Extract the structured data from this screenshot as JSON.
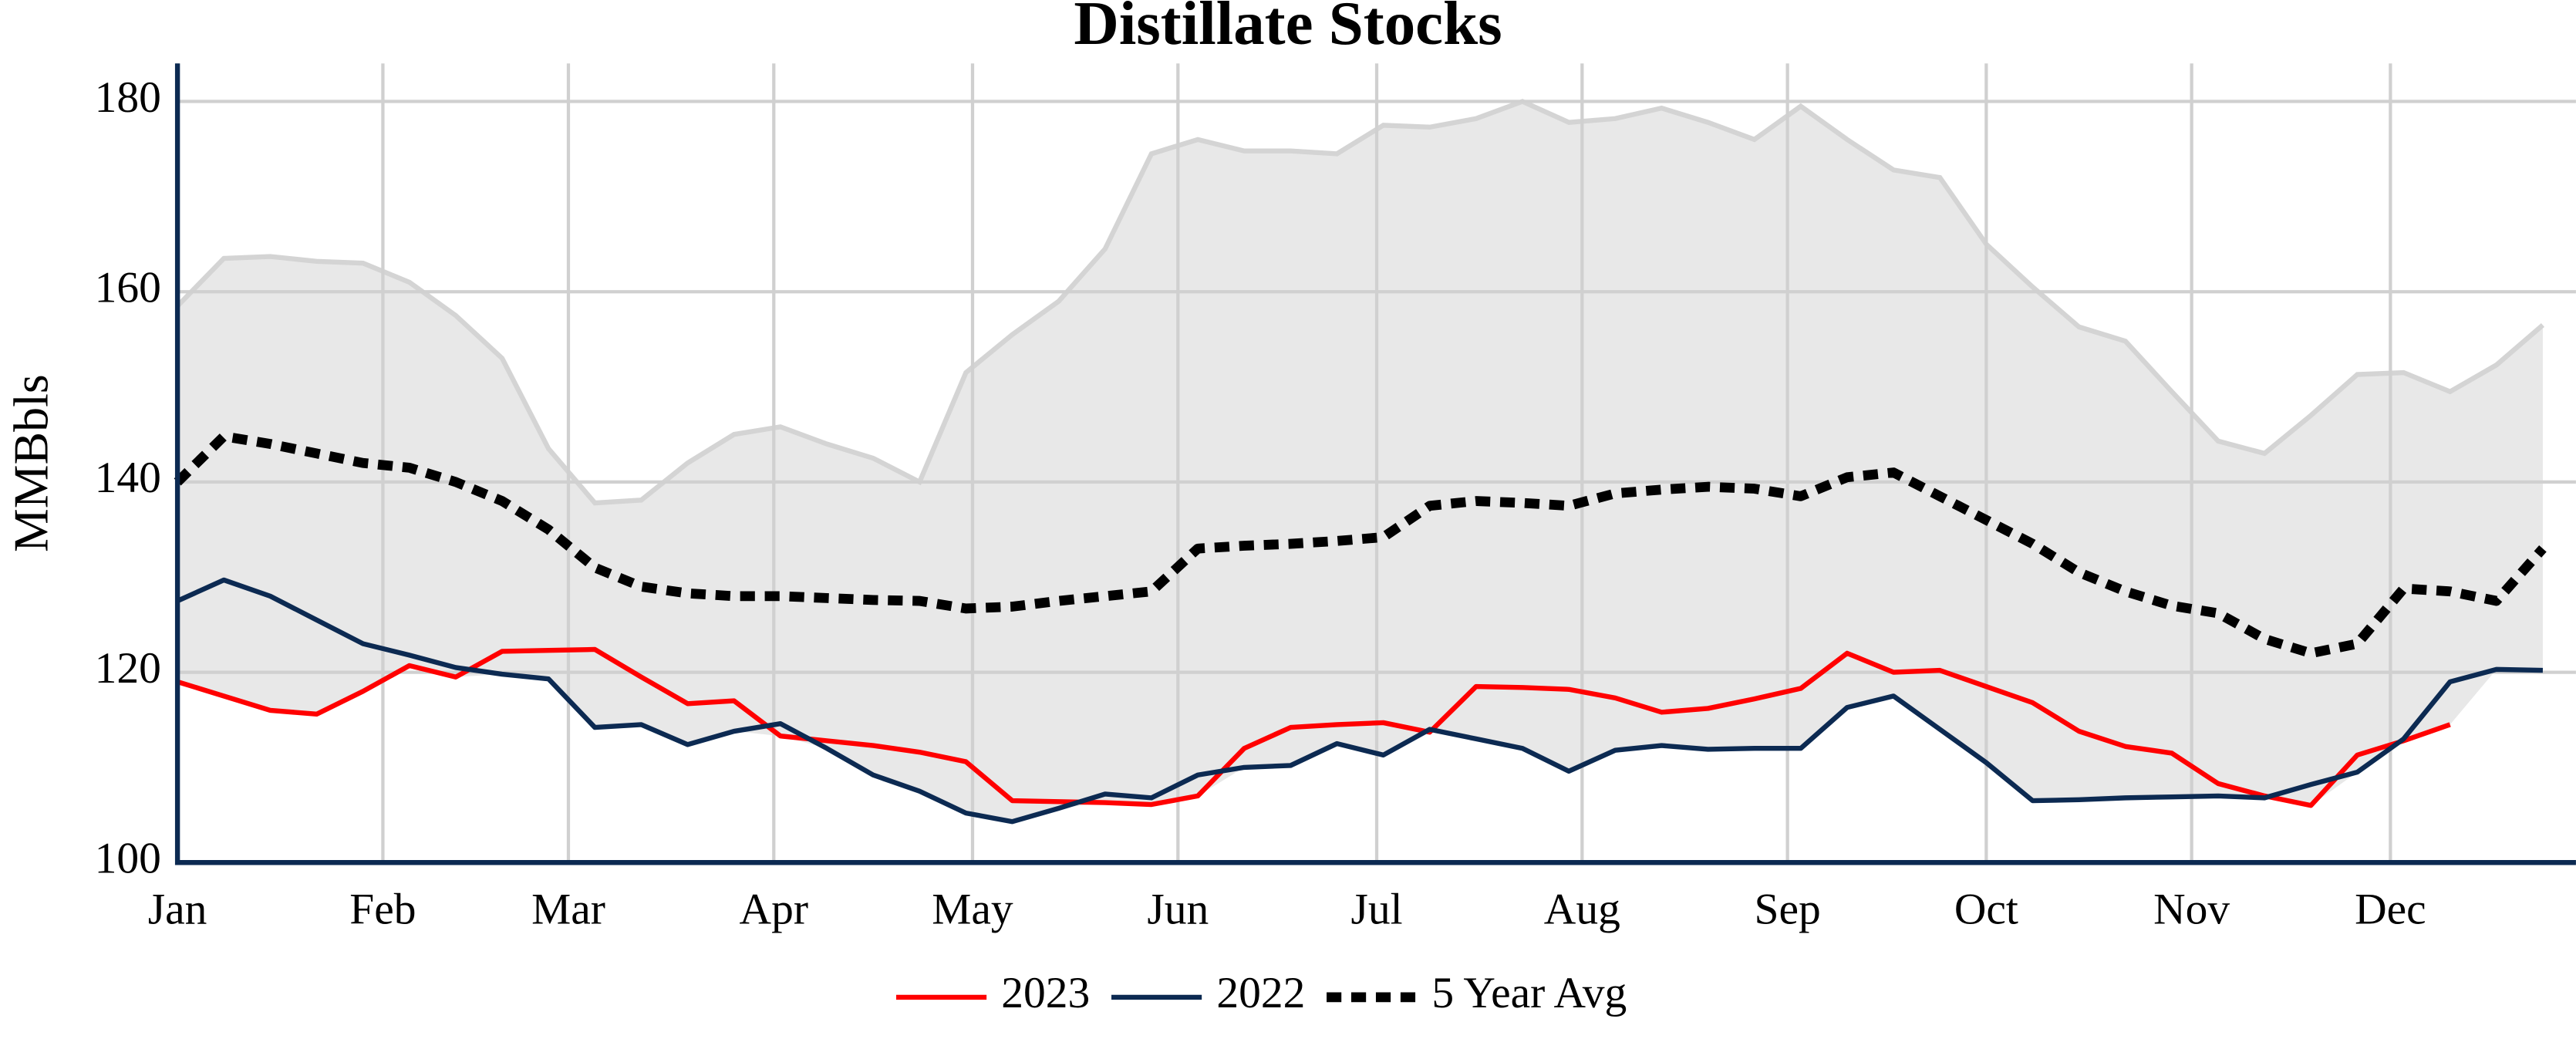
{
  "chart_data": {
    "type": "line",
    "title": "Distillate Stocks",
    "y_label": "MMBbls",
    "x": [
      0,
      7,
      14,
      21,
      28,
      35,
      42,
      49,
      56,
      63,
      70,
      77,
      84,
      91,
      98,
      105,
      112,
      119,
      126,
      133,
      140,
      147,
      154,
      161,
      168,
      175,
      182,
      189,
      196,
      203,
      210,
      217,
      224,
      231,
      238,
      245,
      252,
      259,
      266,
      273,
      280,
      287,
      294,
      301,
      308,
      315,
      322,
      329,
      336,
      343,
      350,
      357
    ],
    "xlim": [
      0,
      362
    ],
    "xticks": [
      {
        "value": 0,
        "label": "Jan"
      },
      {
        "value": 31,
        "label": "Feb"
      },
      {
        "value": 59,
        "label": "Mar"
      },
      {
        "value": 90,
        "label": "Apr"
      },
      {
        "value": 120,
        "label": "May"
      },
      {
        "value": 151,
        "label": "Jun"
      },
      {
        "value": 181,
        "label": "Jul"
      },
      {
        "value": 212,
        "label": "Aug"
      },
      {
        "value": 243,
        "label": "Sep"
      },
      {
        "value": 273,
        "label": "Oct"
      },
      {
        "value": 304,
        "label": "Nov"
      },
      {
        "value": 334,
        "label": "Dec"
      }
    ],
    "ylim": [
      100,
      184
    ],
    "yticks": [
      100,
      120,
      140,
      160,
      180
    ],
    "grid": true,
    "legend": "bottom",
    "band": {
      "color": "#e8e8e8",
      "edge_color": "#d4d4d4",
      "high": [
        158.5,
        163.5,
        163.7,
        163.2,
        163,
        161,
        157.5,
        153,
        143.5,
        137.8,
        138.1,
        142,
        145,
        145.8,
        144,
        142.5,
        140,
        151.5,
        155.5,
        159,
        164.5,
        174.5,
        176,
        174.8,
        174.8,
        174.5,
        177.5,
        177.3,
        178.2,
        180,
        177.8,
        178.2,
        179.3,
        177.8,
        176,
        179.5,
        176,
        172.8,
        172,
        165,
        160.5,
        156.3,
        154.8,
        149.5,
        144.3,
        143,
        147,
        151.3,
        151.5,
        149.5,
        152.3,
        156.5
      ],
      "low": [
        119,
        117.5,
        116,
        115.6,
        118,
        120.7,
        119.5,
        119.8,
        119.3,
        114.2,
        114.5,
        112.4,
        113.8,
        113.3,
        112,
        109.2,
        107.5,
        105.2,
        104.3,
        105.7,
        106.3,
        106.1,
        107,
        110,
        110.2,
        112.5,
        111.3,
        113.7,
        113,
        112,
        109.6,
        111.8,
        112.3,
        111.9,
        112,
        112,
        116.3,
        117.5,
        114,
        110.5,
        106.5,
        106.6,
        106.8,
        106.9,
        107,
        106.8,
        106,
        109.5,
        112.8,
        114.5,
        120.3,
        120.2
      ]
    },
    "series": [
      {
        "name": "2023",
        "color": "#ff0000",
        "style": "solid",
        "values": [
          119,
          117.5,
          116,
          115.6,
          118,
          120.7,
          119.5,
          122.2,
          122.3,
          122.4,
          119.5,
          116.7,
          117,
          113.3,
          112.8,
          112.3,
          111.6,
          110.6,
          106.5,
          106.4,
          106.3,
          106.1,
          107,
          112,
          114.2,
          114.5,
          114.7,
          113.7,
          118.5,
          118.4,
          118.2,
          117.3,
          115.8,
          116.2,
          117.2,
          118.3,
          122,
          120,
          120.2,
          118.5,
          116.8,
          113.8,
          112.2,
          111.5,
          108.3,
          107,
          106,
          111.3,
          112.8,
          114.5,
          null,
          null
        ]
      },
      {
        "name": "2022",
        "color": "#0c2a52",
        "style": "solid",
        "values": [
          127.5,
          129.7,
          128,
          125.5,
          123,
          121.8,
          120.5,
          119.8,
          119.3,
          114.2,
          114.5,
          112.4,
          113.8,
          114.6,
          112,
          109.2,
          107.5,
          105.2,
          104.3,
          105.7,
          107.2,
          106.8,
          109.2,
          110,
          110.2,
          112.5,
          111.3,
          114,
          113,
          112,
          109.6,
          111.8,
          112.3,
          111.9,
          112,
          112,
          116.3,
          117.5,
          114,
          110.5,
          106.5,
          106.6,
          106.8,
          106.9,
          107,
          106.8,
          108.2,
          109.5,
          113,
          119,
          120.3,
          120.2
        ]
      },
      {
        "name": "5 Year Avg",
        "color": "#000000",
        "style": "dotted",
        "values": [
          140,
          144.8,
          144,
          143,
          142,
          141.5,
          140,
          138,
          135,
          131,
          129,
          128.3,
          128,
          128,
          127.8,
          127.6,
          127.5,
          126.7,
          126.9,
          127.5,
          128,
          128.5,
          133,
          133.3,
          133.5,
          133.8,
          134.2,
          137.5,
          138,
          137.8,
          137.5,
          138.8,
          139.2,
          139.5,
          139.3,
          138.5,
          140.5,
          141,
          138.5,
          136,
          133.5,
          130.5,
          128.5,
          127,
          126.2,
          123.5,
          122,
          123,
          128.8,
          128.5,
          127.5,
          133
        ]
      }
    ]
  }
}
